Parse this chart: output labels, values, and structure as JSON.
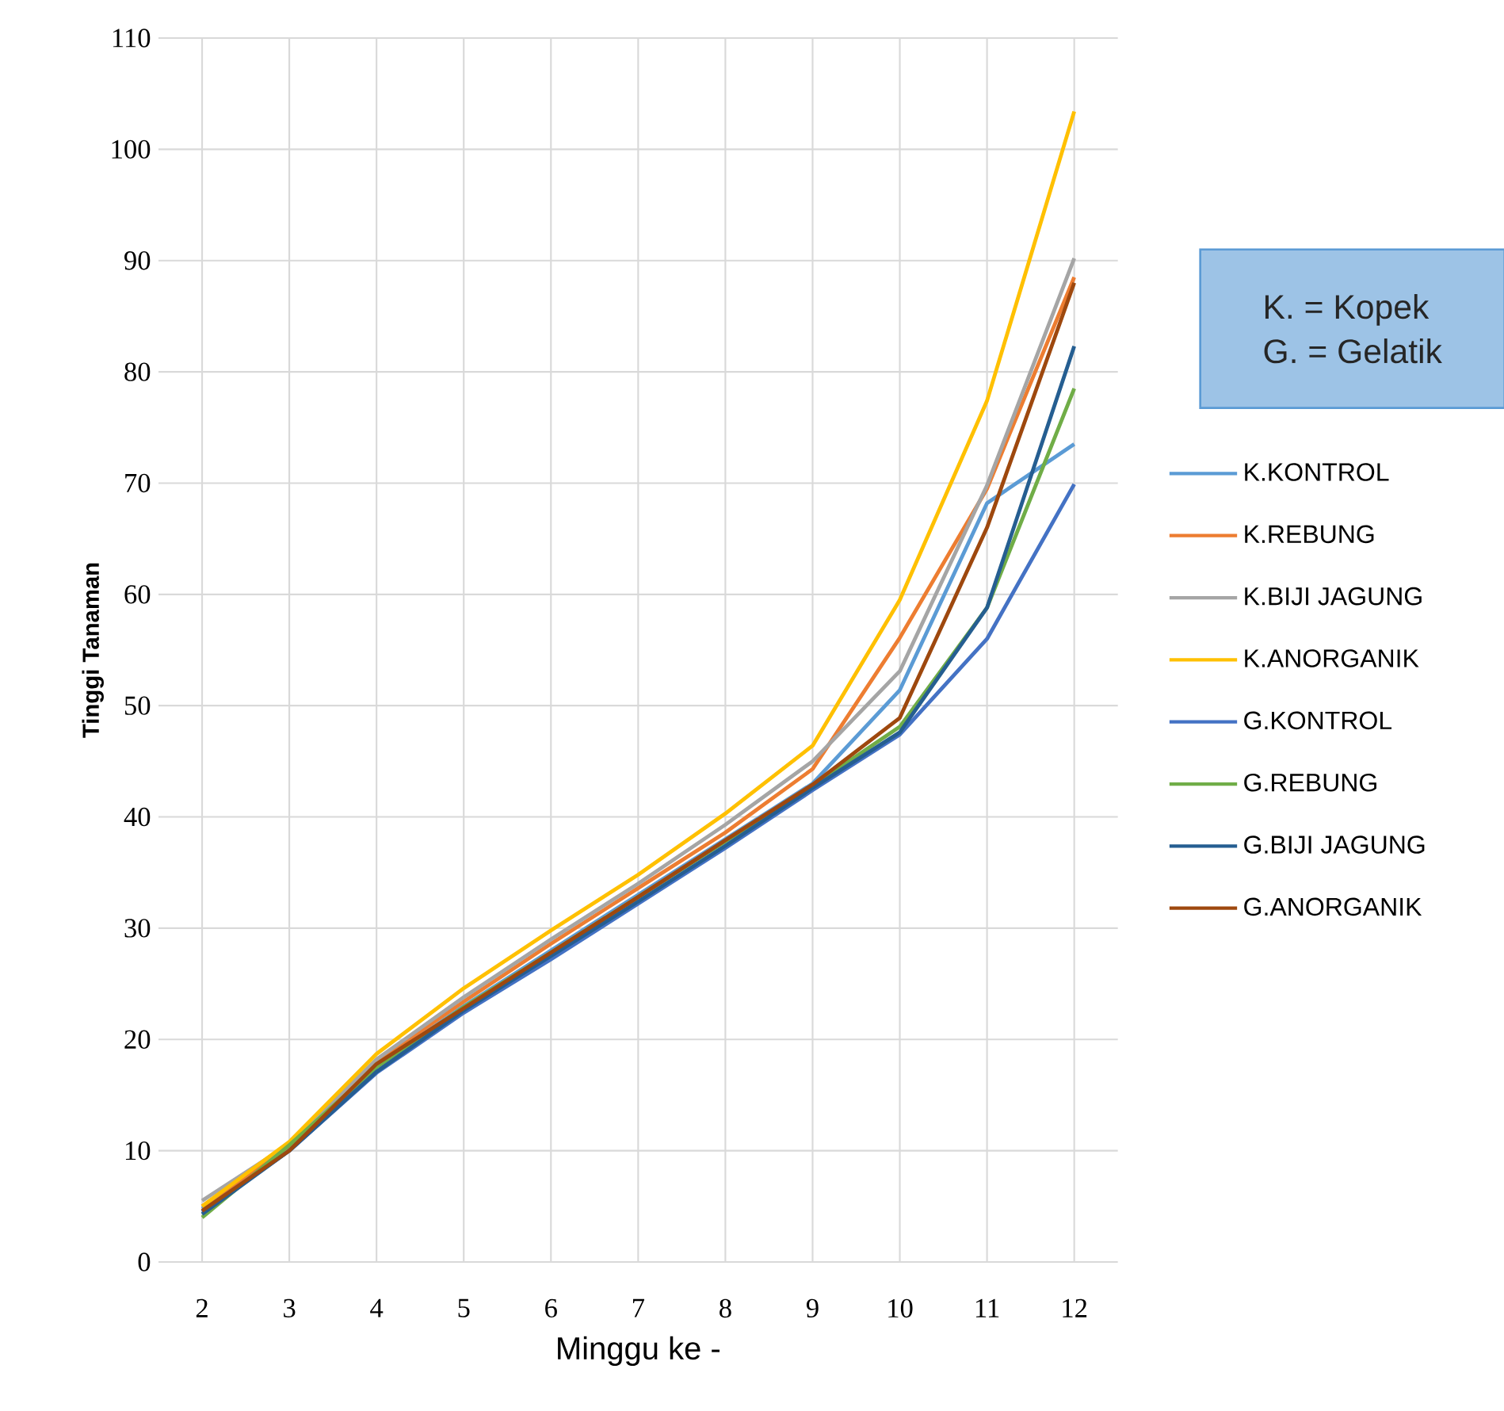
{
  "chart_data": {
    "type": "line",
    "xlabel": "Minggu ke -",
    "ylabel": "Tinggi Tanaman",
    "annotations": [
      "K. = Kopek",
      "G. = Gelatik"
    ],
    "categories": [
      "2",
      "3",
      "4",
      "5",
      "6",
      "7",
      "8",
      "9",
      "10",
      "11",
      "12"
    ],
    "ylim": [
      0,
      110
    ],
    "yticks": [
      0,
      10,
      20,
      30,
      40,
      50,
      60,
      70,
      80,
      90,
      100,
      110
    ],
    "grid": true,
    "legend": "right",
    "marker": "none",
    "line_style": "solid",
    "series": [
      {
        "name": "K.KONTROL",
        "color": "#5b9bd5",
        "values": [
          4.8,
          10.3,
          17.6,
          23.0,
          28.0,
          33.0,
          38.0,
          43.0,
          51.4,
          68.2,
          73.5
        ]
      },
      {
        "name": "K.REBUNG",
        "color": "#ed7d31",
        "values": [
          5.0,
          10.4,
          18.0,
          23.4,
          28.6,
          33.6,
          38.6,
          44.3,
          56.1,
          69.5,
          88.5
        ]
      },
      {
        "name": "K.BIJI JAGUNG",
        "color": "#a5a5a5",
        "values": [
          5.5,
          10.6,
          18.2,
          23.8,
          29.0,
          34.0,
          39.3,
          45.0,
          53.1,
          69.8,
          90.2
        ]
      },
      {
        "name": "K.ANORGANIK",
        "color": "#ffc000",
        "values": [
          5.0,
          10.8,
          18.7,
          24.6,
          29.8,
          34.8,
          40.3,
          46.4,
          59.5,
          77.4,
          103.4
        ]
      },
      {
        "name": "G.KONTROL",
        "color": "#4472c4",
        "values": [
          4.5,
          10.0,
          17.0,
          22.4,
          27.2,
          32.2,
          37.2,
          42.4,
          47.4,
          56.0,
          69.9
        ]
      },
      {
        "name": "G.REBUNG",
        "color": "#70ad47",
        "values": [
          4.0,
          10.5,
          17.5,
          22.9,
          27.8,
          32.8,
          37.8,
          42.8,
          48.1,
          58.8,
          78.5
        ]
      },
      {
        "name": "G.BIJI JAGUNG",
        "color": "#255e91",
        "values": [
          4.3,
          10.0,
          17.1,
          22.6,
          27.5,
          32.4,
          37.4,
          42.6,
          47.6,
          58.8,
          82.3
        ]
      },
      {
        "name": "G.ANORGANIK",
        "color": "#9e480e",
        "values": [
          4.6,
          10.0,
          17.8,
          22.8,
          27.8,
          32.8,
          37.9,
          42.9,
          48.9,
          66.0,
          88.0
        ]
      }
    ]
  }
}
